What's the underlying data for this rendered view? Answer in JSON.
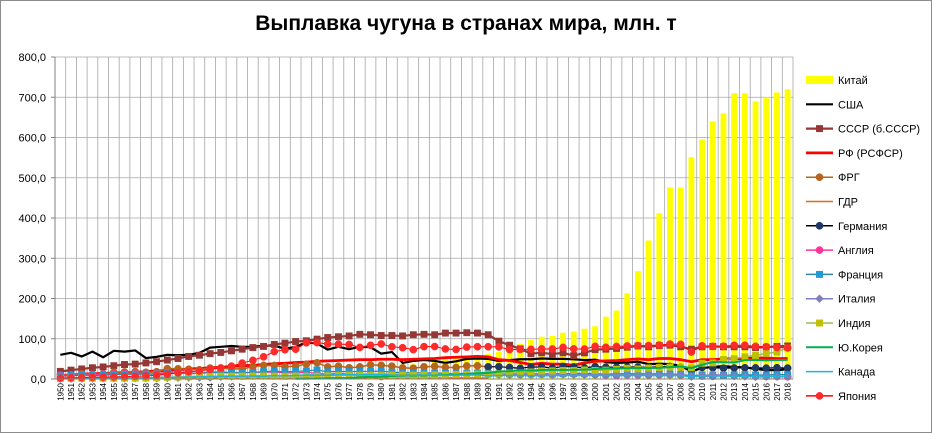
{
  "chart_data": {
    "type": "line",
    "title": "Выплавка чугуна в странах мира, млн. т",
    "ylim": [
      0,
      800
    ],
    "yticks": [
      "0,0",
      "100,0",
      "200,0",
      "300,0",
      "400,0",
      "500,0",
      "600,0",
      "700,0",
      "800,0"
    ],
    "x": [
      "1950",
      "1951",
      "1952",
      "1953",
      "1954",
      "1955",
      "1956",
      "1957",
      "1958",
      "1959",
      "1960",
      "1961",
      "1962",
      "1963",
      "1964",
      "1965",
      "1966",
      "1967",
      "1968",
      "1969",
      "1970",
      "1971",
      "1972",
      "1973",
      "1974",
      "1975",
      "1976",
      "1977",
      "1978",
      "1979",
      "1980",
      "1981",
      "1982",
      "1983",
      "1984",
      "1985",
      "1986",
      "1987",
      "1988",
      "1989",
      "1990",
      "1991",
      "1992",
      "1993",
      "1994",
      "1995",
      "1996",
      "1997",
      "1998",
      "1999",
      "2000",
      "2001",
      "2002",
      "2003",
      "2004",
      "2005",
      "2006",
      "2007",
      "2008",
      "2009",
      "2010",
      "2011",
      "2012",
      "2013",
      "2014",
      "2015",
      "2016",
      "2017",
      "2018"
    ],
    "grid": true,
    "legend_position": "right",
    "series": [
      {
        "name": "Китай",
        "kind": "bar",
        "color": "#ffff00",
        "values": [
          1,
          1.5,
          2,
          2.2,
          3,
          3.6,
          4.8,
          5.9,
          13.7,
          20,
          27,
          13,
          8,
          10,
          12,
          14,
          16,
          14,
          12,
          17,
          21,
          25,
          23,
          25,
          26,
          24,
          23,
          26,
          35,
          37,
          38,
          34,
          36,
          37,
          40,
          44,
          50,
          55,
          57,
          58,
          62,
          67,
          75,
          87,
          97,
          105,
          107,
          115,
          118,
          125,
          131,
          155,
          170,
          213,
          268,
          344,
          412,
          476,
          476,
          551,
          595,
          640,
          660,
          710,
          710,
          690,
          700,
          712,
          720
        ]
      },
      {
        "name": "США",
        "kind": "line",
        "color": "#000000",
        "width": 2.2,
        "values": [
          60,
          65,
          56,
          68,
          54,
          70,
          68,
          71,
          52,
          55,
          60,
          59,
          60,
          65,
          78,
          80,
          82,
          80,
          80,
          83,
          83,
          75,
          80,
          91,
          88,
          73,
          80,
          74,
          80,
          79,
          63,
          67,
          40,
          45,
          47,
          45,
          40,
          44,
          50,
          51,
          50,
          45,
          47,
          49,
          49,
          51,
          50,
          50,
          49,
          47,
          48,
          42,
          40,
          41,
          43,
          37,
          38,
          37,
          33,
          19,
          27,
          30,
          32,
          30,
          29,
          25,
          22,
          22,
          24
        ]
      },
      {
        "name": "СССР (б.СССР)",
        "kind": "line",
        "marker": "square",
        "color": "#953735",
        "width": 2.2,
        "values": [
          19,
          22,
          25,
          28,
          30,
          33,
          36,
          37,
          40,
          43,
          47,
          51,
          56,
          59,
          63,
          66,
          70,
          74,
          78,
          81,
          86,
          89,
          93,
          95,
          99,
          103,
          105,
          107,
          111,
          110,
          108,
          108,
          107,
          110,
          111,
          110,
          114,
          114,
          115,
          114,
          110,
          94,
          84,
          75,
          63,
          65,
          62,
          65,
          58,
          65,
          73,
          74,
          76,
          79,
          82,
          80,
          83,
          84,
          80,
          74,
          80,
          81,
          80,
          80,
          80,
          78,
          79,
          81,
          82
        ]
      },
      {
        "name": "РФ (РСФСР)",
        "kind": "line",
        "color": "#ff0000",
        "width": 2.8,
        "values": [
          9,
          10,
          12,
          13,
          14,
          15,
          16,
          17,
          18,
          20,
          21,
          23,
          25,
          26,
          28,
          29,
          31,
          33,
          34,
          36,
          38,
          39,
          41,
          42,
          44,
          45,
          46,
          47,
          48,
          48,
          49,
          49,
          48,
          49,
          50,
          51,
          53,
          54,
          55,
          56,
          55,
          48,
          46,
          41,
          36,
          39,
          37,
          37,
          34,
          40,
          44,
          45,
          46,
          48,
          50,
          48,
          51,
          51,
          48,
          43,
          48,
          48,
          50,
          50,
          51,
          52,
          52,
          51,
          51
        ]
      },
      {
        "name": "ФРГ",
        "kind": "line",
        "marker": "circle",
        "color": "#b5651d",
        "width": 1.5,
        "values": [
          9.5,
          10.7,
          12.9,
          11.7,
          12.5,
          16.5,
          17.6,
          18.4,
          16.6,
          18,
          25.7,
          25.4,
          24.3,
          22.9,
          27.2,
          27,
          25.4,
          25,
          30.4,
          33.8,
          33.6,
          30,
          32,
          36.8,
          40.2,
          30,
          31.9,
          28,
          30.2,
          35,
          33.9,
          31.9,
          27.6,
          26.6,
          30.2,
          31.5,
          29,
          28.5,
          32.5,
          32.8,
          30.1,
          null,
          null,
          null,
          null,
          null,
          null,
          null,
          null,
          null,
          null,
          null,
          null,
          null,
          null,
          null,
          null,
          null,
          null,
          null,
          null,
          null,
          null,
          null,
          null,
          null,
          null,
          null,
          null
        ]
      },
      {
        "name": "ГДР",
        "kind": "line",
        "color": "#e46c0a",
        "width": 1.5,
        "values": [
          0.3,
          0.5,
          1,
          1.2,
          1.6,
          1.9,
          1.9,
          2,
          2,
          2,
          2,
          2.1,
          2.2,
          2.2,
          2.3,
          2.3,
          2.3,
          2.4,
          2.4,
          2.4,
          2,
          2,
          2.1,
          2.2,
          2.2,
          2.4,
          2.5,
          2.6,
          2.5,
          2.4,
          2.5,
          2.5,
          2.3,
          2.2,
          2.3,
          2.5,
          2.6,
          2.7,
          2.7,
          2.6,
          2.2,
          null,
          null,
          null,
          null,
          null,
          null,
          null,
          null,
          null,
          null,
          null,
          null,
          null,
          null,
          null,
          null,
          null,
          null,
          null,
          null,
          null,
          null,
          null,
          null,
          null,
          null,
          null,
          null
        ]
      },
      {
        "name": "Германия",
        "kind": "line",
        "marker": "circle",
        "color": "#000000",
        "markerColor": "#1f3864",
        "width": 1.2,
        "values": [
          null,
          null,
          null,
          null,
          null,
          null,
          null,
          null,
          null,
          null,
          null,
          null,
          null,
          null,
          null,
          null,
          null,
          null,
          null,
          null,
          null,
          null,
          null,
          null,
          null,
          null,
          null,
          null,
          null,
          null,
          null,
          null,
          null,
          null,
          null,
          null,
          null,
          null,
          null,
          null,
          30.1,
          30.6,
          28.6,
          26.7,
          29.6,
          30,
          27.3,
          30.9,
          30.2,
          27.9,
          30.8,
          29.2,
          29.4,
          29.5,
          30,
          28.9,
          30.4,
          31,
          29.1,
          20.1,
          28.6,
          27.9,
          26.9,
          27.3,
          27.9,
          27.6,
          27.1,
          28,
          27.2
        ]
      },
      {
        "name": "Англия",
        "kind": "line",
        "marker": "circle",
        "color": "#ff3399",
        "markerColor": "#ff3399",
        "width": 1.2,
        "values": [
          9.8,
          9.8,
          10.9,
          11.2,
          12,
          12.5,
          13.4,
          14.3,
          13,
          12.8,
          16,
          15,
          13.9,
          14.8,
          17,
          17.8,
          16,
          15.2,
          16.7,
          16.6,
          17.7,
          15.4,
          15.3,
          16.9,
          13.9,
          12.1,
          13.9,
          12.2,
          11.4,
          12.9,
          6.3,
          9.6,
          8.6,
          9.3,
          9.5,
          10.4,
          9.7,
          11.9,
          13.2,
          13.5,
          12.3,
          12,
          11.5,
          11.5,
          11.9,
          12.2,
          12.7,
          13,
          12.7,
          12.1,
          10.9,
          9.9,
          8.6,
          10.2,
          10.2,
          10.2,
          10.7,
          10.9,
          10.1,
          7.7,
          7.2,
          6.6,
          8.5,
          9.5,
          10,
          6.7,
          6.1,
          6.1,
          5.6
        ]
      },
      {
        "name": "Франция",
        "kind": "line",
        "marker": "square",
        "color": "#31859c",
        "markerColor": "#1f9bd6",
        "width": 1.2,
        "values": [
          7.8,
          8.8,
          9.8,
          8.7,
          8.8,
          11,
          11.6,
          11.8,
          12.1,
          12.2,
          14,
          14.4,
          13.9,
          14.2,
          15.7,
          15.8,
          15.6,
          15.7,
          16.4,
          18.2,
          19.2,
          18,
          18.8,
          20.3,
          22.5,
          17.9,
          19,
          18.3,
          18.5,
          19.4,
          19.2,
          17,
          15.9,
          14.9,
          15.3,
          15.1,
          14,
          13.2,
          14.7,
          14.8,
          14.1,
          13.3,
          12.9,
          12.8,
          12.9,
          12.9,
          12.1,
          13.4,
          13.6,
          13.9,
          13.7,
          12,
          13.2,
          12.8,
          13.2,
          12.7,
          13,
          12.4,
          11.4,
          8.1,
          10.1,
          9.7,
          9.4,
          10.3,
          10.9,
          9.7,
          10,
          11.1,
          11
        ]
      },
      {
        "name": "Италия",
        "kind": "line",
        "marker": "diamond",
        "color": "#7f7fc0",
        "markerColor": "#7f7fc0",
        "width": 1.2,
        "values": [
          0.5,
          1,
          1.1,
          1.2,
          1.5,
          1.7,
          1.8,
          2.1,
          2.1,
          2.1,
          2.7,
          3,
          3.6,
          3.7,
          3.6,
          5.5,
          6.3,
          7.3,
          7.8,
          8.4,
          8.4,
          8.5,
          9.4,
          10.1,
          11.8,
          11.4,
          11.7,
          11.4,
          11.3,
          11.2,
          12.4,
          12.4,
          11.8,
          10.4,
          11.7,
          11.8,
          11.9,
          11.4,
          11.4,
          11.8,
          11.9,
          10.9,
          10.6,
          11.2,
          11.2,
          11.7,
          10.3,
          11.5,
          10.8,
          10.8,
          11.2,
          10.8,
          9.7,
          9.8,
          10.7,
          11.4,
          10.9,
          11,
          10.4,
          5.7,
          8.6,
          11,
          9.7,
          6.9,
          6.4,
          5,
          5.9,
          5.9,
          5.8
        ]
      },
      {
        "name": "Индия",
        "kind": "line",
        "marker": "square",
        "color": "#9bbb59",
        "markerColor": "#c0c000",
        "width": 1.5,
        "values": [
          1.7,
          1.8,
          1.8,
          1.8,
          1.9,
          1.9,
          1.9,
          1.9,
          2.1,
          3,
          4.3,
          5,
          5.5,
          6.4,
          6.6,
          7.1,
          7,
          7,
          7.2,
          7.5,
          7,
          6.8,
          7.1,
          7,
          7.1,
          8,
          9,
          9.4,
          9,
          8.9,
          8.5,
          9.4,
          9.5,
          9.2,
          9.7,
          10.1,
          10.4,
          11.2,
          11.6,
          12,
          12,
          13,
          15,
          15.5,
          17.4,
          20,
          20.2,
          21,
          21,
          22.5,
          21.3,
          21.9,
          24.3,
          26.6,
          25.1,
          27.1,
          28.3,
          29.7,
          29.1,
          27.8,
          39.1,
          40.1,
          48.4,
          50.6,
          55.2,
          58.4,
          63.7,
          66.8,
          77.1
        ]
      },
      {
        "name": "Ю.Корея",
        "kind": "line",
        "color": "#00b050",
        "width": 2.0,
        "values": [
          null,
          null,
          null,
          null,
          null,
          null,
          null,
          null,
          null,
          null,
          null,
          null,
          null,
          null,
          null,
          null,
          null,
          null,
          null,
          null,
          null,
          null,
          0.5,
          1,
          1.1,
          1.9,
          2.1,
          2.5,
          4.5,
          5.2,
          5.6,
          7.6,
          8,
          8.4,
          8.8,
          9,
          10,
          11,
          12.2,
          14.4,
          15.3,
          18.6,
          19.3,
          21.9,
          21.2,
          22.3,
          23,
          22.8,
          23,
          23.3,
          24.9,
          26.1,
          26.5,
          27.1,
          27.5,
          27.2,
          27.6,
          29.4,
          31,
          27.3,
          35.1,
          42.2,
          41.7,
          40.9,
          46.9,
          47.6,
          46.3,
          47.1,
          47.5
        ]
      },
      {
        "name": "Канада",
        "kind": "line",
        "color": "#1fb5d6",
        "width": 1.5,
        "values": [
          2.1,
          2.4,
          2.5,
          2.7,
          2.2,
          2.8,
          3.3,
          3.3,
          2.7,
          3.6,
          3.9,
          4.2,
          5,
          5.4,
          6.3,
          6.7,
          7,
          6.7,
          7.3,
          6.5,
          8.4,
          8.1,
          8.6,
          9.6,
          9.4,
          9.2,
          10.7,
          10.4,
          10.3,
          11,
          11,
          9.7,
          8.1,
          8.9,
          9.8,
          9.7,
          9.1,
          9.5,
          9.6,
          10.3,
          7.3,
          8.3,
          8.9,
          8.6,
          8.2,
          8.5,
          8.6,
          8.7,
          8.9,
          8.7,
          8.9,
          8.8,
          8.8,
          8.6,
          9,
          8.9,
          8.3,
          8.6,
          8.4,
          5.9,
          7.7,
          7.6,
          7.3,
          6.7,
          6.9,
          6,
          6.5,
          6.5,
          7.1
        ]
      },
      {
        "name": "Япония",
        "kind": "line",
        "marker": "circle",
        "color": "#ff0000",
        "markerColor": "#ff2a2a",
        "width": 1.0,
        "values": [
          2.3,
          3.1,
          3.5,
          4.5,
          4.6,
          5.2,
          5.9,
          6.8,
          7.4,
          9.4,
          11.9,
          15.4,
          18,
          20,
          23.8,
          27.5,
          32,
          39.6,
          46.4,
          55.1,
          68,
          72.7,
          74,
          90,
          90.4,
          86.9,
          86.6,
          85.8,
          78.5,
          83.8,
          87,
          80,
          77.7,
          72.9,
          80.4,
          80.6,
          74.7,
          73.4,
          79.3,
          80.2,
          80.2,
          79.7,
          73.1,
          73.7,
          73.7,
          74.9,
          74.6,
          78.5,
          74.9,
          74.5,
          81.1,
          78.8,
          80.9,
          82.1,
          82.9,
          83.1,
          84.3,
          86.8,
          86.2,
          66.9,
          82.3,
          81,
          81.4,
          83.8,
          83.9,
          81,
          80.2,
          78.3,
          77.3
        ]
      }
    ]
  }
}
